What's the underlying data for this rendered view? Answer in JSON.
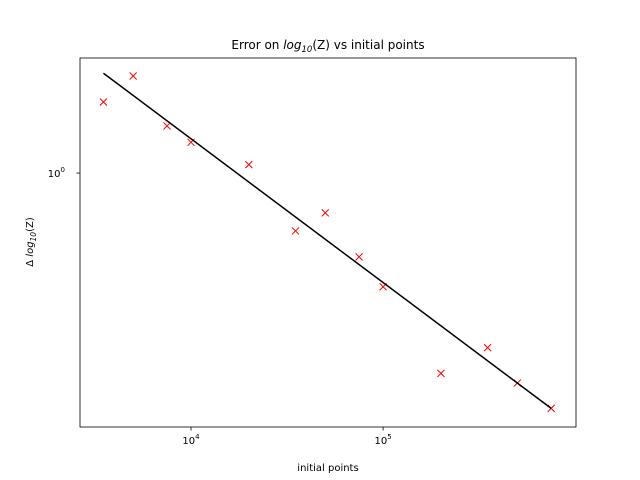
{
  "chart_data": {
    "type": "scatter",
    "title": [
      "Error on ",
      "log",
      "10",
      "(Z) vs initial points"
    ],
    "xlabel": "initial points",
    "ylabel": [
      "Δ ",
      "log",
      "10",
      "(Z)"
    ],
    "xscale": "log",
    "yscale": "log",
    "xlim": [
      2643,
      1010000
    ],
    "ylim": [
      0.13,
      2.52
    ],
    "xticks": [
      {
        "value": 10000,
        "label": [
          "10",
          "4"
        ]
      },
      {
        "value": 100000,
        "label": [
          "10",
          "5"
        ]
      }
    ],
    "yticks": [
      {
        "value": 1,
        "label": [
          "10",
          "0"
        ]
      }
    ],
    "series": [
      {
        "style": "marker",
        "color": "#ff0000",
        "x": [
          3500,
          5000,
          7500,
          10000,
          20000,
          35000,
          50000,
          75000,
          100000,
          200000,
          350000,
          500000,
          750000
        ],
        "values": [
          1.77,
          2.18,
          1.46,
          1.28,
          1.07,
          0.628,
          0.726,
          0.51,
          0.401,
          0.2,
          0.246,
          0.185,
          0.151
        ]
      },
      {
        "style": "line",
        "color": "#000000",
        "x": [
          3500,
          750000
        ],
        "values": [
          2.23,
          0.151
        ]
      }
    ]
  }
}
